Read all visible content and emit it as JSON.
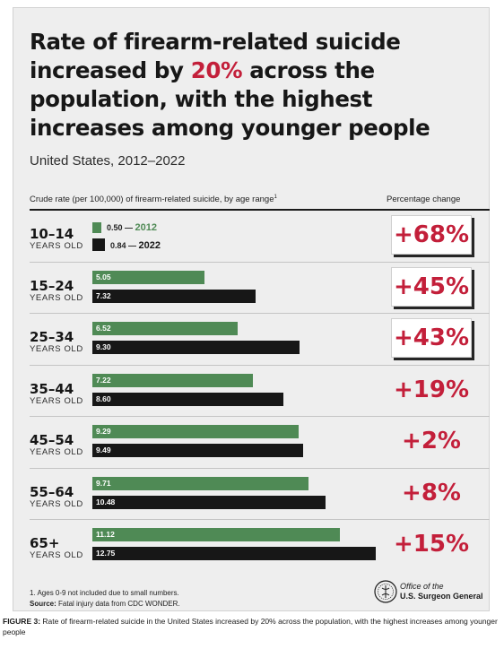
{
  "header": {
    "title_part1": "Rate of firearm-related suicide increased by ",
    "title_accent": "20%",
    "title_part2": " across the population, with the highest increases among younger people",
    "subtitle": "United States, 2012–2022",
    "col_left": "Crude rate (per 100,000) of firearm-related suicide, by age range",
    "col_left_sup": "1",
    "col_right": "Percentage change"
  },
  "legend": {
    "dash": "—",
    "series_2012": "2012",
    "series_2022": "2022"
  },
  "chart_data": {
    "type": "bar",
    "orientation": "horizontal",
    "title": "Rate of firearm-related suicide increased by 20% across the population, with the highest increases among younger people",
    "subtitle": "United States, 2012–2022",
    "xlabel": "Crude rate (per 100,000) of firearm-related suicide, by age range",
    "unit_label": "YEARS OLD",
    "categories": [
      "10–14",
      "15–24",
      "25–34",
      "35–44",
      "45–54",
      "55–64",
      "65+"
    ],
    "series": [
      {
        "name": "2012",
        "color": "#4f8a55",
        "values": [
          0.5,
          5.05,
          6.52,
          7.22,
          9.29,
          9.71,
          11.12
        ],
        "labels": [
          "0.50",
          "5.05",
          "6.52",
          "7.22",
          "9.29",
          "9.71",
          "11.12"
        ]
      },
      {
        "name": "2022",
        "color": "#171717",
        "values": [
          0.84,
          7.32,
          9.3,
          8.6,
          9.49,
          10.48,
          12.75
        ],
        "labels": [
          "0.84",
          "7.32",
          "9.30",
          "8.60",
          "9.49",
          "10.48",
          "12.75"
        ]
      }
    ],
    "percent_change": [
      "+68%",
      "+45%",
      "+43%",
      "+19%",
      "+2%",
      "+8%",
      "+15%"
    ],
    "highlighted": [
      true,
      true,
      true,
      false,
      false,
      false,
      false
    ],
    "xlim": [
      0,
      13
    ],
    "grid": false,
    "legend_position": "inside first row"
  },
  "footer": {
    "footnote": "1. Ages 0-9 not included due to small numbers.",
    "source_label": "Source:",
    "source_text": " Fatal injury data from CDC WONDER.",
    "org_line1_italic": "Office of the",
    "org_line2": "U.S. Surgeon General"
  },
  "caption": {
    "label": "FIGURE 3:",
    "text": " Rate of firearm-related suicide in the United States increased by 20% across the population, with the highest increases among younger people"
  },
  "colors": {
    "accent": "#c31f3a",
    "green": "#4f8a55",
    "black": "#171717",
    "panel": "#eeeeee"
  }
}
